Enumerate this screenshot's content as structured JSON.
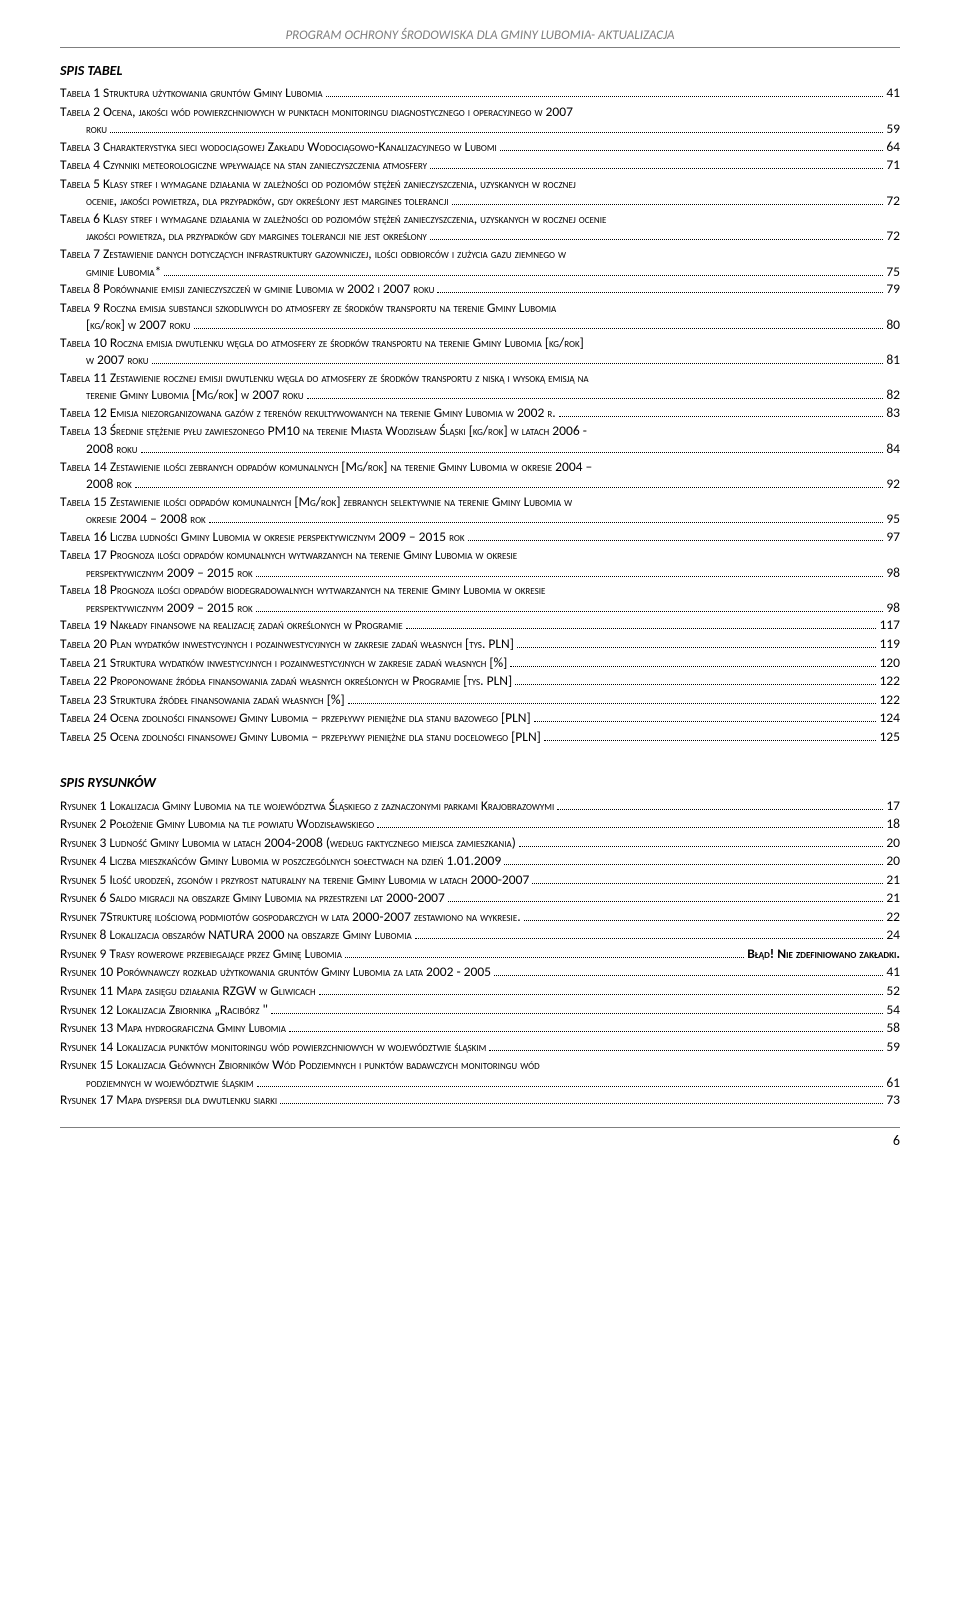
{
  "header": {
    "title": "PROGRAM OCHRONY ŚRODOWISKA DLA GMINY LUBOMIA- AKTUALIZACJA"
  },
  "sections": {
    "tables_title": "SPIS TABEL",
    "figures_title": "SPIS RYSUNKÓW"
  },
  "tables": [
    {
      "label": "Tabela 1 Struktura użytkowania gruntów Gminy Lubomia",
      "page": "41"
    },
    {
      "label_line1": "Tabela 2 Ocena, jakości wód powierzchniowych w punktach monitoringu diagnostycznego i operacyjnego w 2007",
      "label_cont": "roku",
      "page": "59"
    },
    {
      "label_line1": "Tabela 3 Charakterystyka sieci wodociągowej Zakładu Wodociągowo-Kanalizacyjnego w Lubomi",
      "page": "64"
    },
    {
      "label": "Tabela 4 Czynniki meteorologiczne wpływające na stan zanieczyszczenia atmosfery",
      "page": "71"
    },
    {
      "label_line1": "Tabela 5 Klasy stref i wymagane działania w zależności od poziomów stężeń zanieczyszczenia, uzyskanych w rocznej",
      "label_cont": "ocenie, jakości powietrza, dla przypadków, gdy określony jest margines tolerancji",
      "page": "72"
    },
    {
      "label_line1": "Tabela 6 Klasy stref i wymagane działania w zależności od poziomów stężeń zanieczyszczenia, uzyskanych w rocznej ocenie",
      "label_cont": "jakości powietrza, dla przypadków gdy margines tolerancji nie jest określony",
      "page": "72"
    },
    {
      "label_line1": "Tabela 7 Zestawienie danych dotyczących infrastruktury gazowniczej, ilości odbiorców i zużycia gazu ziemnego w",
      "label_cont": "gminie Lubomia*",
      "page": "75"
    },
    {
      "label": "Tabela 8 Porównanie emisji zanieczyszczeń w gminie Lubomia w 2002 i 2007 roku",
      "page": "79"
    },
    {
      "label_line1": "Tabela 9 Roczna emisja substancji szkodliwych do atmosfery ze środków transportu na terenie Gminy Lubomia",
      "label_cont": "[kg/rok] w 2007 roku",
      "page": "80"
    },
    {
      "label_line1": "Tabela 10 Roczna emisja dwutlenku węgla do atmosfery ze środków transportu na terenie Gminy Lubomia [kg/rok]",
      "label_cont": "w 2007 roku",
      "page": "81"
    },
    {
      "label_line1": "Tabela 11 Zestawienie rocznej emisji dwutlenku węgla do atmosfery ze środków transportu z niską i wysoką emisją na",
      "label_cont": "terenie Gminy Lubomia [Mg/rok] w 2007 roku",
      "page": "82"
    },
    {
      "label": "Tabela 12 Emisja niezorganizowana gazów z terenów rekultywowanych na terenie Gminy Lubomia w 2002 r.",
      "page": "83"
    },
    {
      "label_line1": "Tabela 13 Średnie stężenie pyłu zawieszonego PM10 na terenie Miasta Wodzisław Śląski [kg/rok] w latach 2006 -",
      "label_cont": "2008 roku",
      "page": "84"
    },
    {
      "label_line1": "Tabela 14 Zestawienie ilości zebranych odpadów komunalnych [Mg/rok] na terenie Gminy Lubomia w okresie 2004 –",
      "label_cont": "2008 rok",
      "page": "92"
    },
    {
      "label_line1": "Tabela 15 Zestawienie ilości odpadów komunalnych [Mg/rok] zebranych selektywnie na terenie Gminy Lubomia w",
      "label_cont": "okresie 2004 – 2008 rok",
      "page": "95"
    },
    {
      "label": "Tabela 16 Liczba ludności Gminy Lubomia w okresie perspektywicznym 2009 – 2015 rok",
      "page": "97"
    },
    {
      "label_line1": "Tabela 17 Prognoza ilości odpadów komunalnych wytwarzanych na terenie Gminy Lubomia w okresie",
      "label_cont": "perspektywicznym 2009 – 2015 rok",
      "page": "98"
    },
    {
      "label_line1": "Tabela 18 Prognoza ilości odpadów biodegradowalnych wytwarzanych na terenie Gminy Lubomia w okresie",
      "label_cont": "perspektywicznym 2009 – 2015 rok",
      "page": "98"
    },
    {
      "label": "Tabela 19 Nakłady finansowe na realizację zadań określonych w Programie",
      "page": "117"
    },
    {
      "label": "Tabela 20 Plan wydatków inwestycyjnych i pozainwestycyjnych w zakresie zadań własnych [tys. PLN]",
      "page": "119"
    },
    {
      "label": "Tabela 21 Struktura wydatków inwestycyjnych i pozainwestycyjnych w zakresie zadań własnych [%]",
      "page": "120"
    },
    {
      "label": "Tabela 22 Proponowane źródła finansowania zadań własnych określonych w Programie [tys. PLN]",
      "page": "122"
    },
    {
      "label": "Tabela 23 Struktura źródeł finansowania zadań własnych [%]",
      "page": "122"
    },
    {
      "label": "Tabela 24 Ocena zdolności finansowej Gminy Lubomia – przepływy pieniężne dla stanu bazowego [PLN]",
      "page": "124"
    },
    {
      "label": "Tabela 25 Ocena zdolności finansowej Gminy Lubomia – przepływy pieniężne dla stanu docelowego [PLN]",
      "page": "125"
    }
  ],
  "figures": [
    {
      "label": "Rysunek 1 Lokalizacja Gminy Lubomia na tle województwa Śląskiego z zaznaczonymi parkami Krajobrazowymi",
      "page": "17"
    },
    {
      "label": "Rysunek 2 Położenie Gminy Lubomia na tle powiatu Wodzisławskiego",
      "page": "18"
    },
    {
      "label": "Rysunek 3 Ludność Gminy Lubomia w latach 2004-2008 (według faktycznego miejsca zamieszkania)",
      "page": "20"
    },
    {
      "label": "Rysunek 4 Liczba mieszkańców Gminy Lubomia w poszczególnych sołectwach na dzień 1.01.2009",
      "page": "20"
    },
    {
      "label": "Rysunek 5 Ilość urodzeń, zgonów i przyrost naturalny na terenie Gminy Lubomia w latach 2000-2007",
      "page": "21"
    },
    {
      "label": "Rysunek 6 Saldo migracji na obszarze Gminy Lubomia na przestrzeni lat 2000-2007",
      "page": "21"
    },
    {
      "label": "Rysunek 7Strukturę ilościową podmiotów gospodarczych w lata 2000-2007 zestawiono na wykresie.",
      "page": "22"
    },
    {
      "label": "Rysunek 8 Lokalizacja obszarów NATURA 2000 na obszarze Gminy Lubomia",
      "page": "24"
    },
    {
      "label": "Rysunek 9 Trasy rowerowe przebiegające przez Gminę Lubomia",
      "page_special": "Błąd! Nie zdefiniowano zakładki."
    },
    {
      "label": "Rysunek 10 Porównawczy rozkład użytkowania gruntów Gminy Lubomia za lata 2002 - 2005",
      "page": "41"
    },
    {
      "label": "Rysunek 11 Mapa zasięgu działania RZGW w Gliwicach",
      "page": "52"
    },
    {
      "label": "Rysunek 12 Lokalizacja Zbiornika „Racibórz \"",
      "page": "54"
    },
    {
      "label": "Rysunek 13 Mapa hydrograficzna Gminy Lubomia",
      "page": "58"
    },
    {
      "label": "Rysunek 14 Lokalizacja punktów monitoringu wód powierzchniowych w województwie śląskim",
      "page": "59"
    },
    {
      "label_line1": "Rysunek 15 Lokalizacja Głównych Zbiorników Wód Podziemnych i punktów badawczych monitoringu wód",
      "label_cont": "podziemnych w województwie śląskim",
      "page": "61"
    },
    {
      "label": "Rysunek 17 Mapa dyspersji dla dwutlenku siarki",
      "page": "73"
    }
  ],
  "footer": {
    "page_number": "6"
  }
}
